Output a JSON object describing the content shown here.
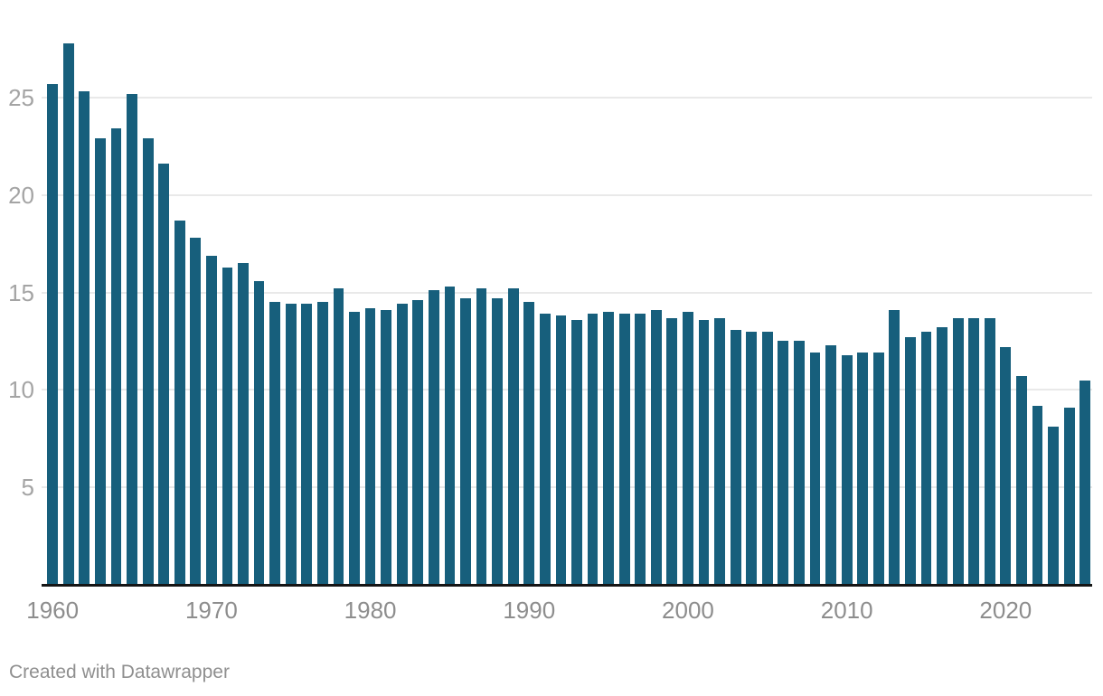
{
  "chart_data": {
    "type": "bar",
    "title": "",
    "xlabel": "",
    "ylabel": "",
    "x": [
      1960,
      1961,
      1962,
      1963,
      1964,
      1965,
      1966,
      1967,
      1968,
      1969,
      1970,
      1971,
      1972,
      1973,
      1974,
      1975,
      1976,
      1977,
      1978,
      1979,
      1980,
      1981,
      1982,
      1983,
      1984,
      1985,
      1986,
      1987,
      1988,
      1989,
      1990,
      1991,
      1992,
      1993,
      1994,
      1995,
      1996,
      1997,
      1998,
      1999,
      2000,
      2001,
      2002,
      2003,
      2004,
      2005,
      2006,
      2007,
      2008,
      2009,
      2010,
      2011,
      2012,
      2013,
      2014,
      2015,
      2016,
      2017,
      2018,
      2019,
      2020,
      2021,
      2022,
      2023,
      2024,
      2025
    ],
    "values": [
      25.7,
      27.8,
      25.3,
      22.9,
      23.4,
      25.2,
      22.9,
      21.6,
      18.7,
      17.8,
      16.9,
      16.3,
      16.5,
      15.6,
      14.5,
      14.4,
      14.4,
      14.5,
      15.2,
      14.0,
      14.2,
      14.1,
      14.4,
      14.6,
      15.1,
      15.3,
      14.7,
      15.2,
      14.7,
      15.2,
      14.5,
      13.9,
      13.8,
      13.6,
      13.9,
      14.0,
      13.9,
      13.9,
      14.1,
      13.7,
      14.0,
      13.6,
      13.7,
      13.1,
      13.0,
      13.0,
      12.5,
      12.5,
      11.9,
      12.3,
      11.8,
      11.9,
      11.9,
      14.1,
      12.7,
      13.0,
      13.2,
      13.7,
      13.7,
      13.7,
      12.2,
      10.7,
      9.2,
      8.1,
      9.1,
      10.5
    ],
    "y_ticks": [
      5,
      10,
      15,
      20,
      25
    ],
    "x_ticks": [
      1960,
      1970,
      1980,
      1990,
      2000,
      2010,
      2020
    ],
    "ylim": [
      0,
      28
    ],
    "grid": "horizontal",
    "legend_position": "none",
    "bar_color": "#175f7c",
    "gridline_color": "#e9e9e9",
    "baseline_color": "#151515",
    "y_label_color": "#a4a4a4",
    "x_label_color": "#8d8d8d"
  },
  "footer": {
    "credit_label": "Created with Datawrapper"
  }
}
